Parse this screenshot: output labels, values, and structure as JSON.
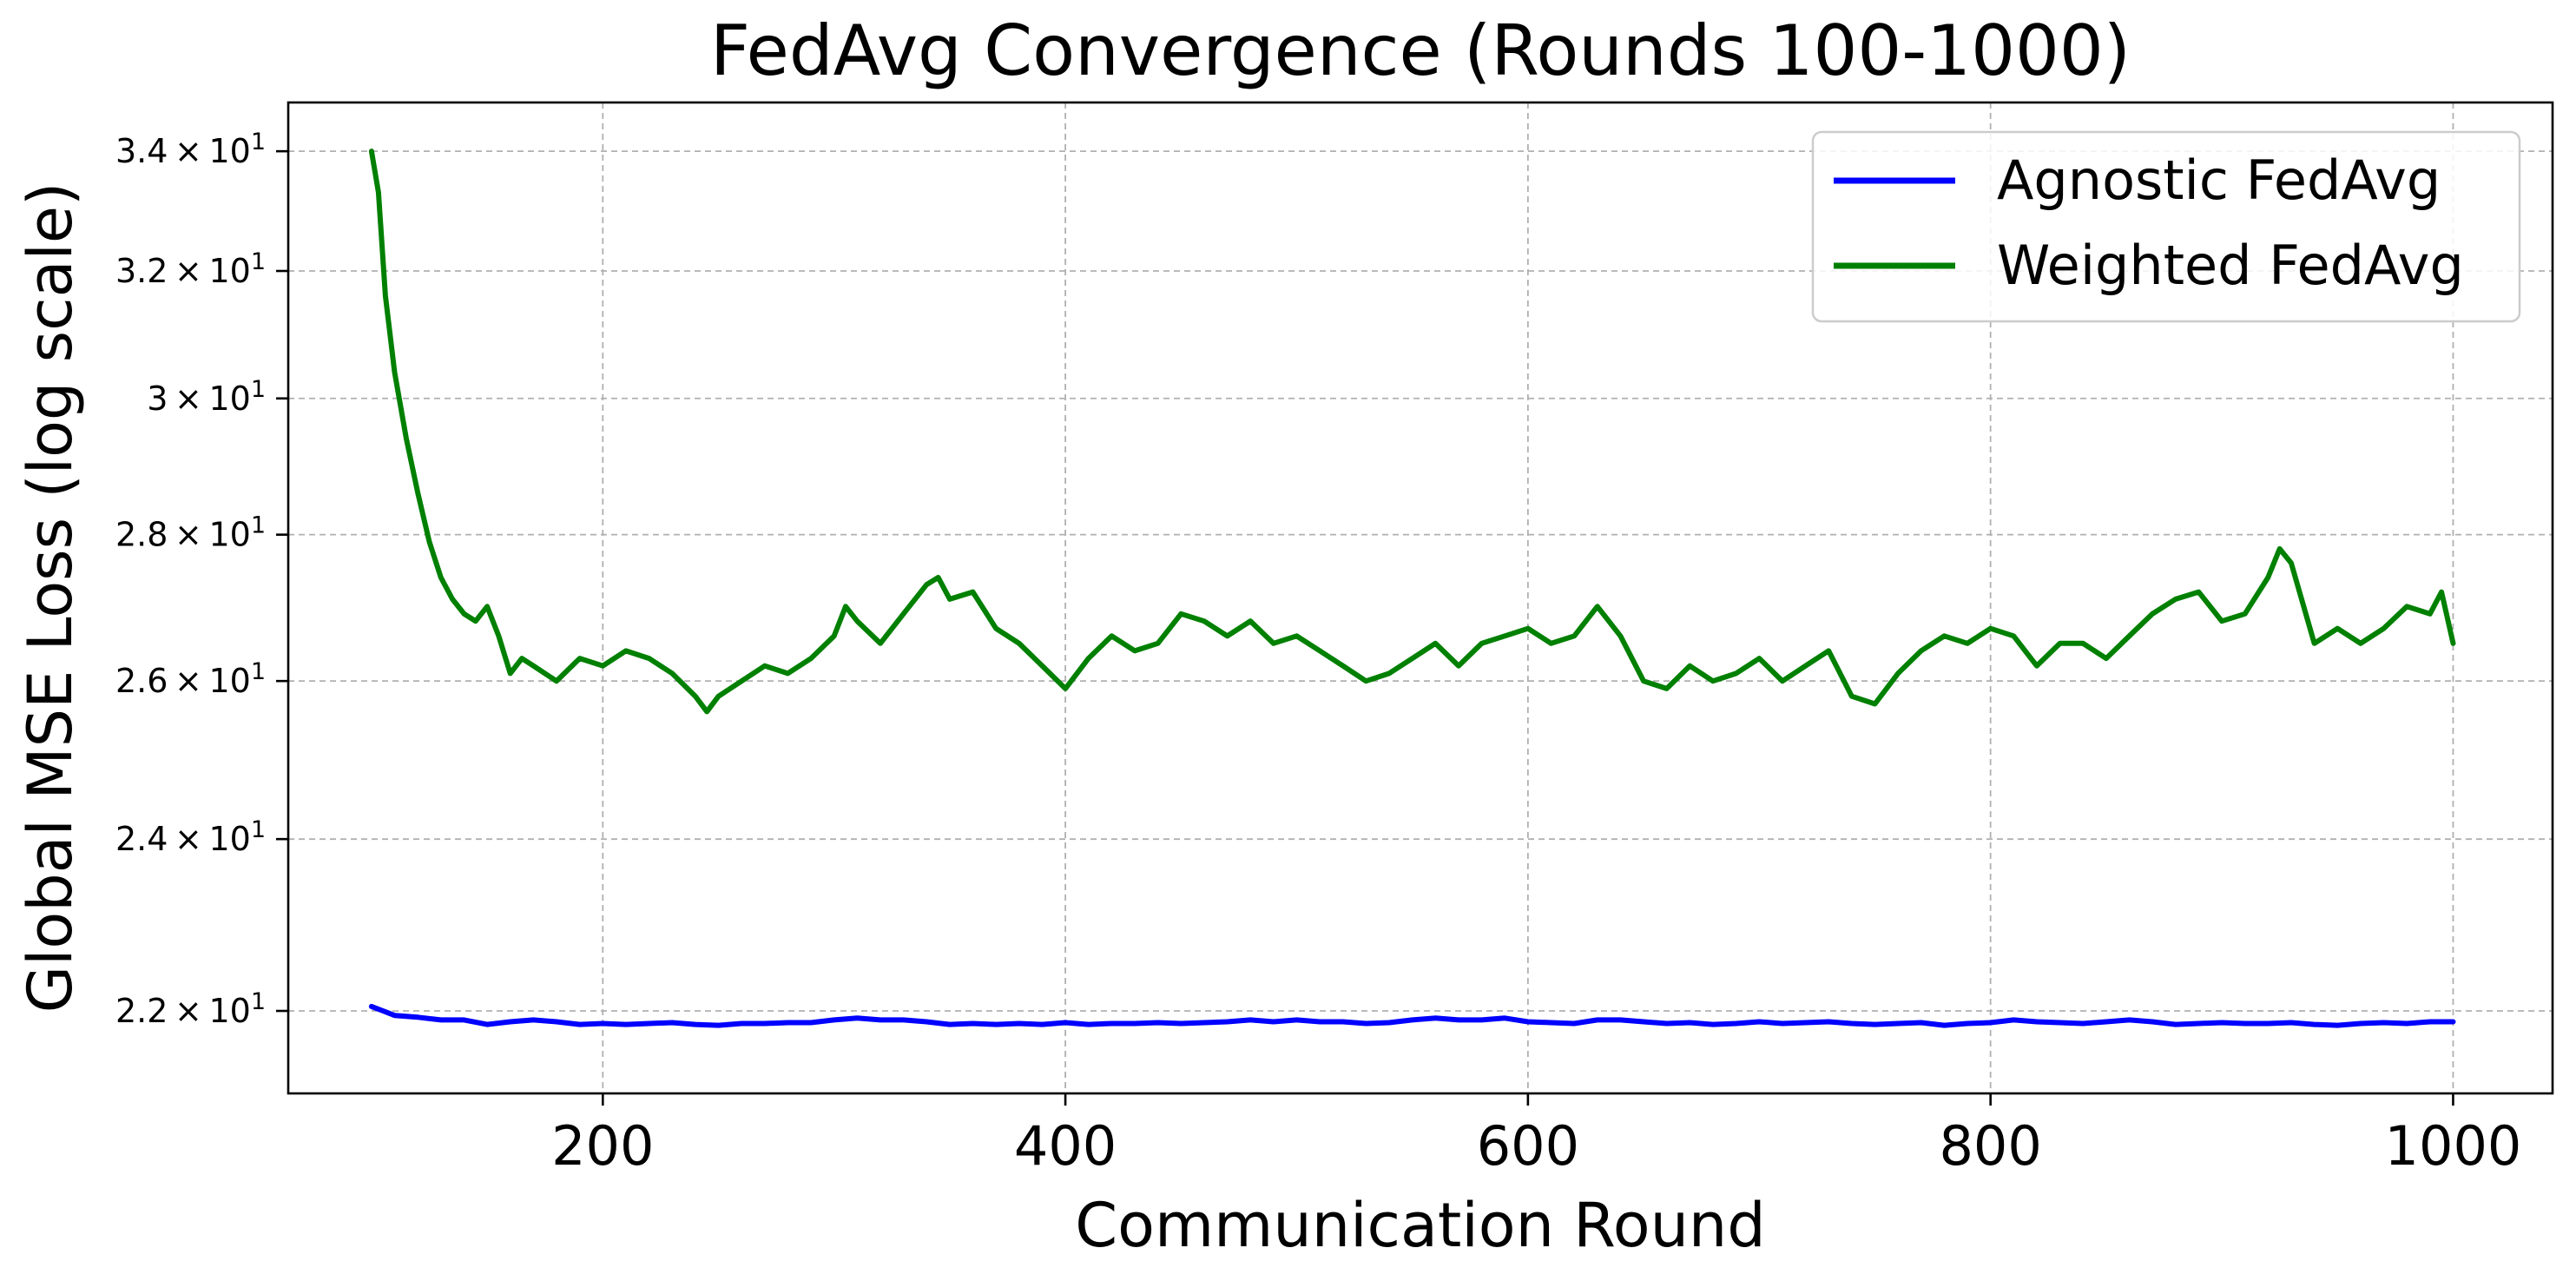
{
  "chart_data": {
    "type": "line",
    "title": "FedAvg Convergence (Rounds 100-1000)",
    "xlabel": "Communication Round",
    "ylabel": "Global MSE Loss (log scale)",
    "xlim": [
      64,
      1043
    ],
    "ylim": [
      21.1,
      34.85
    ],
    "y_scale": "log",
    "grid": true,
    "legend_position": "top-right",
    "x_ticks": [
      {
        "value": 200,
        "label": "200"
      },
      {
        "value": 400,
        "label": "400"
      },
      {
        "value": 600,
        "label": "600"
      },
      {
        "value": 800,
        "label": "800"
      },
      {
        "value": 1000,
        "label": "1000"
      }
    ],
    "y_ticks": [
      {
        "value": 22,
        "mantissa": "2.2",
        "base": "10",
        "exponent": "1"
      },
      {
        "value": 24,
        "mantissa": "2.4",
        "base": "10",
        "exponent": "1"
      },
      {
        "value": 26,
        "mantissa": "2.6",
        "base": "10",
        "exponent": "1"
      },
      {
        "value": 28,
        "mantissa": "2.8",
        "base": "10",
        "exponent": "1"
      },
      {
        "value": 30,
        "mantissa": "3",
        "base": "10",
        "exponent": "1"
      },
      {
        "value": 32,
        "mantissa": "3.2",
        "base": "10",
        "exponent": "1"
      },
      {
        "value": 34,
        "mantissa": "3.4",
        "base": "10",
        "exponent": "1"
      }
    ],
    "series": [
      {
        "name": "Agnostic FedAvg",
        "color": "#0000ff",
        "x": [
          100,
          105,
          110,
          120,
          130,
          140,
          150,
          160,
          170,
          180,
          190,
          200,
          210,
          220,
          230,
          240,
          250,
          260,
          270,
          280,
          290,
          300,
          310,
          320,
          330,
          340,
          350,
          360,
          370,
          380,
          390,
          400,
          410,
          420,
          430,
          440,
          450,
          460,
          470,
          480,
          490,
          500,
          510,
          520,
          530,
          540,
          550,
          560,
          570,
          580,
          590,
          600,
          610,
          620,
          630,
          640,
          650,
          660,
          670,
          680,
          690,
          700,
          710,
          720,
          730,
          740,
          750,
          760,
          770,
          780,
          790,
          800,
          810,
          820,
          830,
          840,
          850,
          860,
          870,
          880,
          890,
          900,
          910,
          920,
          930,
          940,
          950,
          960,
          970,
          980,
          990,
          1000
        ],
        "values": [
          22.05,
          22.0,
          21.95,
          21.93,
          21.9,
          21.9,
          21.85,
          21.88,
          21.9,
          21.88,
          21.85,
          21.86,
          21.85,
          21.86,
          21.87,
          21.85,
          21.84,
          21.86,
          21.86,
          21.87,
          21.87,
          21.9,
          21.92,
          21.9,
          21.9,
          21.88,
          21.85,
          21.86,
          21.85,
          21.86,
          21.85,
          21.87,
          21.85,
          21.86,
          21.86,
          21.87,
          21.86,
          21.87,
          21.88,
          21.9,
          21.88,
          21.9,
          21.88,
          21.88,
          21.86,
          21.87,
          21.9,
          21.92,
          21.9,
          21.9,
          21.92,
          21.88,
          21.87,
          21.86,
          21.9,
          21.9,
          21.88,
          21.86,
          21.87,
          21.85,
          21.86,
          21.88,
          21.86,
          21.87,
          21.88,
          21.86,
          21.85,
          21.86,
          21.87,
          21.84,
          21.86,
          21.87,
          21.9,
          21.88,
          21.87,
          21.86,
          21.88,
          21.9,
          21.88,
          21.85,
          21.86,
          21.87,
          21.86,
          21.86,
          21.87,
          21.85,
          21.84,
          21.86,
          21.87,
          21.86,
          21.88,
          21.88
        ]
      },
      {
        "name": "Weighted FedAvg",
        "color": "#008000",
        "x": [
          100,
          103,
          106,
          110,
          115,
          120,
          125,
          130,
          135,
          140,
          145,
          150,
          155,
          160,
          165,
          170,
          180,
          190,
          200,
          210,
          220,
          230,
          240,
          245,
          250,
          260,
          270,
          280,
          290,
          300,
          305,
          310,
          320,
          330,
          340,
          345,
          350,
          360,
          370,
          380,
          390,
          400,
          410,
          420,
          430,
          440,
          450,
          460,
          470,
          480,
          490,
          500,
          510,
          520,
          530,
          540,
          550,
          560,
          570,
          580,
          590,
          600,
          610,
          620,
          630,
          640,
          650,
          660,
          670,
          680,
          690,
          700,
          710,
          720,
          730,
          740,
          750,
          760,
          770,
          780,
          790,
          800,
          810,
          820,
          830,
          840,
          850,
          860,
          870,
          880,
          890,
          900,
          910,
          920,
          925,
          930,
          940,
          950,
          960,
          970,
          980,
          990,
          995,
          1000
        ],
        "values": [
          34.0,
          33.3,
          31.6,
          30.4,
          29.4,
          28.6,
          27.9,
          27.4,
          27.1,
          26.9,
          26.8,
          27.0,
          26.6,
          26.1,
          26.3,
          26.2,
          26.0,
          26.3,
          26.2,
          26.4,
          26.3,
          26.1,
          25.8,
          25.6,
          25.8,
          26.0,
          26.2,
          26.1,
          26.3,
          26.6,
          27.0,
          26.8,
          26.5,
          26.9,
          27.3,
          27.4,
          27.1,
          27.2,
          26.7,
          26.5,
          26.2,
          25.9,
          26.3,
          26.6,
          26.4,
          26.5,
          26.9,
          26.8,
          26.6,
          26.8,
          26.5,
          26.6,
          26.4,
          26.2,
          26.0,
          26.1,
          26.3,
          26.5,
          26.2,
          26.5,
          26.6,
          26.7,
          26.5,
          26.6,
          27.0,
          26.6,
          26.0,
          25.9,
          26.2,
          26.0,
          26.1,
          26.3,
          26.0,
          26.2,
          26.4,
          25.8,
          25.7,
          26.1,
          26.4,
          26.6,
          26.5,
          26.7,
          26.6,
          26.2,
          26.5,
          26.5,
          26.3,
          26.6,
          26.9,
          27.1,
          27.2,
          26.8,
          26.9,
          27.4,
          27.8,
          27.6,
          26.5,
          26.7,
          26.5,
          26.7,
          27.0,
          26.9,
          27.2,
          26.5
        ]
      }
    ]
  }
}
